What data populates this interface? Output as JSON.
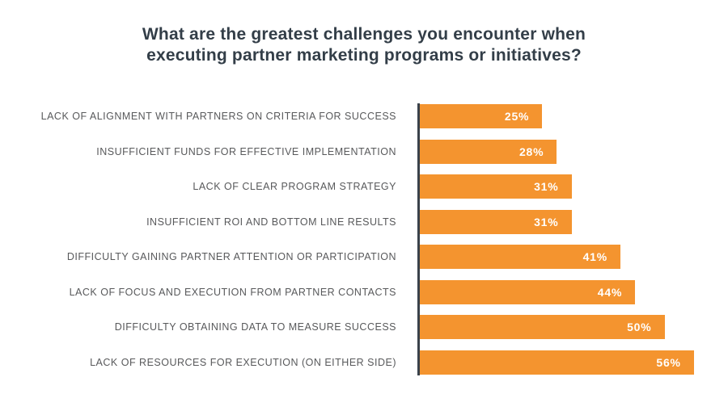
{
  "title": {
    "line1": "What are the greatest challenges you encounter when",
    "line2": "executing partner marketing programs or initiatives?"
  },
  "colors": {
    "background": "#FFFFFF",
    "bar": "#F4942F",
    "axis_line": "#3A424B",
    "title_text": "#333E48",
    "category_text": "#58595B",
    "value_text": "#FFFFFF"
  },
  "chart_data": {
    "type": "bar",
    "orientation": "horizontal",
    "title": "What are the greatest challenges you encounter when executing partner marketing programs or initiatives?",
    "categories": [
      "LACK OF ALIGNMENT WITH PARTNERS ON CRITERIA FOR SUCCESS",
      "INSUFFICIENT FUNDS FOR EFFECTIVE IMPLEMENTATION",
      "LACK OF CLEAR PROGRAM STRATEGY",
      "INSUFFICIENT ROI AND BOTTOM LINE RESULTS",
      "DIFFICULTY GAINING PARTNER ATTENTION OR PARTICIPATION",
      "LACK OF FOCUS AND EXECUTION FROM PARTNER CONTACTS",
      "DIFFICULTY OBTAINING DATA TO MEASURE SUCCESS",
      "LACK OF RESOURCES FOR EXECUTION (ON EITHER SIDE)"
    ],
    "values": [
      25,
      28,
      31,
      31,
      41,
      44,
      50,
      56
    ],
    "value_labels": [
      "25%",
      "28%",
      "31%",
      "31%",
      "41%",
      "44%",
      "50%",
      "56%"
    ],
    "unit": "%",
    "xlim": [
      0,
      60
    ],
    "grid": false,
    "legend": false,
    "value_label_position": "inside-end",
    "xlabel": "",
    "ylabel": ""
  }
}
